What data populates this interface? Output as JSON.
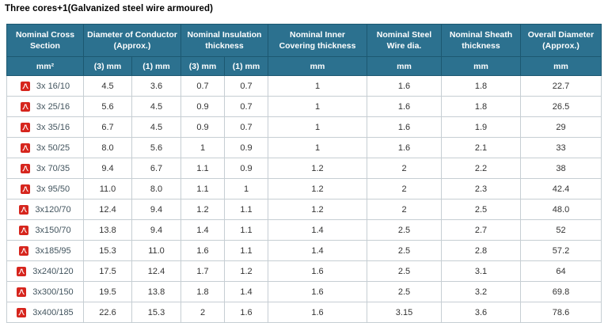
{
  "title": "Three cores+1(Galvanized steel wire armoured)",
  "colors": {
    "header_bg": "#2c718f",
    "header_border": "#1c5871",
    "cell_border": "#c6ced3",
    "pdf_icon_red": "#d6251d",
    "row_label_text": "#42545e",
    "cell_text": "#333333"
  },
  "icons": {
    "row_link_icon": "pdf-icon"
  },
  "chart_data": {
    "type": "table",
    "title": "Three cores+1(Galvanized steel wire armoured)",
    "header_groups": [
      {
        "label": "Nominal Cross Section",
        "span": 1
      },
      {
        "label": "Diameter of Conductor (Approx.)",
        "span": 2
      },
      {
        "label": "Nominal Insulation thickness",
        "span": 2
      },
      {
        "label": "Nominal Inner Covering thickness",
        "span": 1
      },
      {
        "label": "Nominal Steel Wire dia.",
        "span": 1
      },
      {
        "label": "Nominal Sheath thickness",
        "span": 1
      },
      {
        "label": "Overall Diameter (Approx.)",
        "span": 1
      }
    ],
    "subheaders": [
      "mm²",
      "(3) mm",
      "(1) mm",
      "(3) mm",
      "(1) mm",
      "mm",
      "mm",
      "mm",
      "mm"
    ],
    "rows": [
      {
        "label": "3x 16/10",
        "values": [
          "4.5",
          "3.6",
          "0.7",
          "0.7",
          "1",
          "1.6",
          "1.8",
          "22.7"
        ]
      },
      {
        "label": "3x 25/16",
        "values": [
          "5.6",
          "4.5",
          "0.9",
          "0.7",
          "1",
          "1.6",
          "1.8",
          "26.5"
        ]
      },
      {
        "label": "3x 35/16",
        "values": [
          "6.7",
          "4.5",
          "0.9",
          "0.7",
          "1",
          "1.6",
          "1.9",
          "29"
        ]
      },
      {
        "label": "3x 50/25",
        "values": [
          "8.0",
          "5.6",
          "1",
          "0.9",
          "1",
          "1.6",
          "2.1",
          "33"
        ]
      },
      {
        "label": "3x 70/35",
        "values": [
          "9.4",
          "6.7",
          "1.1",
          "0.9",
          "1.2",
          "2",
          "2.2",
          "38"
        ]
      },
      {
        "label": "3x 95/50",
        "values": [
          "11.0",
          "8.0",
          "1.1",
          "1",
          "1.2",
          "2",
          "2.3",
          "42.4"
        ]
      },
      {
        "label": "3x120/70",
        "values": [
          "12.4",
          "9.4",
          "1.2",
          "1.1",
          "1.2",
          "2",
          "2.5",
          "48.0"
        ]
      },
      {
        "label": "3x150/70",
        "values": [
          "13.8",
          "9.4",
          "1.4",
          "1.1",
          "1.4",
          "2.5",
          "2.7",
          "52"
        ]
      },
      {
        "label": "3x185/95",
        "values": [
          "15.3",
          "11.0",
          "1.6",
          "1.1",
          "1.4",
          "2.5",
          "2.8",
          "57.2"
        ]
      },
      {
        "label": "3x240/120",
        "values": [
          "17.5",
          "12.4",
          "1.7",
          "1.2",
          "1.6",
          "2.5",
          "3.1",
          "64"
        ]
      },
      {
        "label": "3x300/150",
        "values": [
          "19.5",
          "13.8",
          "1.8",
          "1.4",
          "1.6",
          "2.5",
          "3.2",
          "69.8"
        ]
      },
      {
        "label": "3x400/185",
        "values": [
          "22.6",
          "15.3",
          "2",
          "1.6",
          "1.6",
          "3.15",
          "3.6",
          "78.6"
        ]
      }
    ]
  }
}
